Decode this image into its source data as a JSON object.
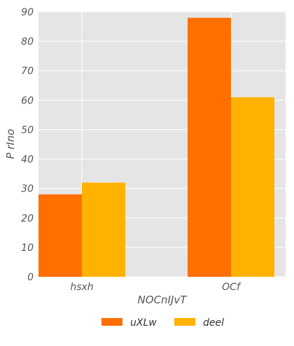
{
  "chart_data": {
    "type": "bar",
    "title": "",
    "xlabel": "NOCnIJvT",
    "ylabel": "P rIno",
    "categories": [
      "hsxh",
      "OCf"
    ],
    "ylim": [
      0,
      90
    ],
    "yticks": [
      0,
      10,
      20,
      30,
      40,
      50,
      60,
      70,
      80,
      90
    ],
    "grid": true,
    "legend_position": "bottom-center",
    "series": [
      {
        "name": "uXLw",
        "color": "#ff6f00",
        "values": [
          28,
          88
        ]
      },
      {
        "name": "deel",
        "color": "#ffb300",
        "values": [
          32,
          61
        ]
      }
    ]
  },
  "style": {
    "plot_background": "#e5e5e5",
    "grid_color": "#ffffff"
  }
}
